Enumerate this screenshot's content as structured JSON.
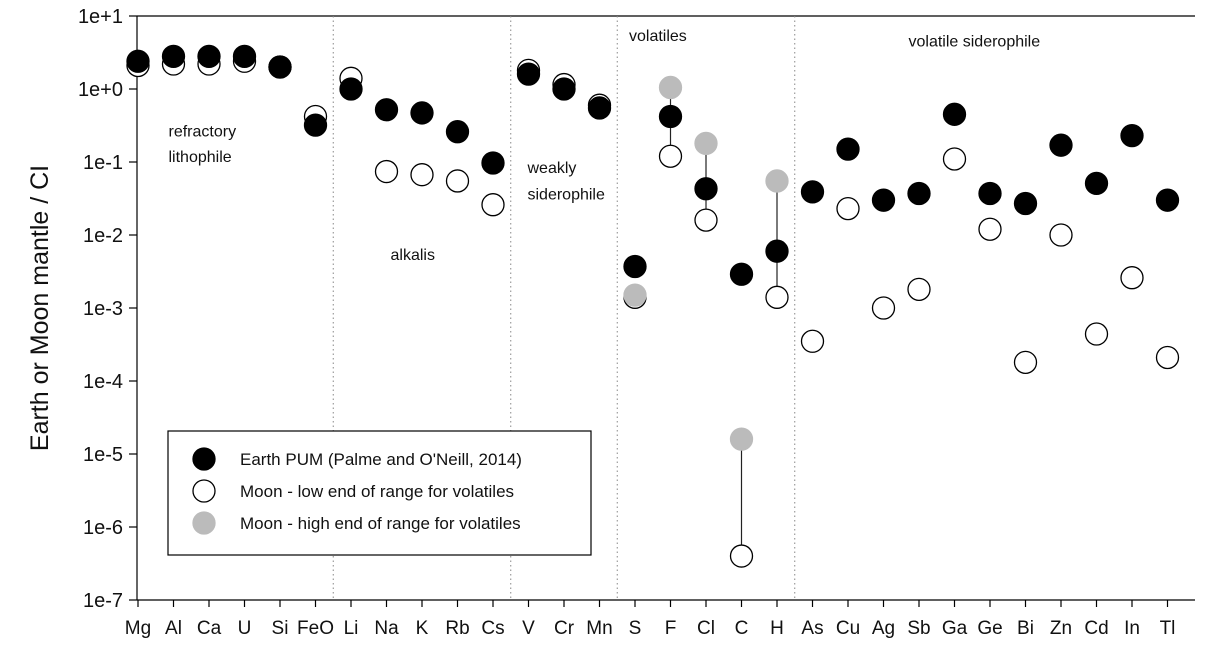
{
  "chart_data": {
    "type": "scatter",
    "title": "",
    "xlabel": "",
    "ylabel": "Earth or Moon mantle / CI",
    "yscale": "log",
    "ylim": [
      1e-07,
      10
    ],
    "y_tick_labels": [
      "1e+1",
      "1e+0",
      "1e-1",
      "1e-2",
      "1e-3",
      "1e-4",
      "1e-5",
      "1e-6",
      "1e-7"
    ],
    "y_tick_values": [
      10,
      1,
      0.1,
      0.01,
      0.001,
      0.0001,
      1e-05,
      1e-06,
      1e-07
    ],
    "categories": [
      "Mg",
      "Al",
      "Ca",
      "U",
      "Si",
      "FeO",
      "Li",
      "Na",
      "K",
      "Rb",
      "Cs",
      "V",
      "Cr",
      "Mn",
      "S",
      "F",
      "Cl",
      "C",
      "H",
      "As",
      "Cu",
      "Ag",
      "Sb",
      "Ga",
      "Ge",
      "Bi",
      "Zn",
      "Cd",
      "In",
      "Tl"
    ],
    "series": [
      {
        "name": "Earth PUM (Palme and O'Neill, 2014)",
        "marker": "filled-black",
        "color": "#000000",
        "values": [
          2.4,
          2.8,
          2.8,
          2.8,
          2.0,
          0.32,
          1.0,
          0.52,
          0.47,
          0.26,
          0.097,
          1.6,
          1.0,
          0.55,
          0.0037,
          0.42,
          0.043,
          0.0029,
          0.006,
          0.039,
          0.15,
          0.03,
          0.037,
          0.45,
          0.037,
          0.027,
          0.17,
          0.051,
          0.23,
          0.03
        ]
      },
      {
        "name": "Moon - low end of range for volatiles",
        "marker": "open-circle",
        "color": "#ffffff",
        "values": [
          2.1,
          2.2,
          2.2,
          2.4,
          2.0,
          0.42,
          1.4,
          0.074,
          0.067,
          0.055,
          0.026,
          1.8,
          1.15,
          0.6,
          0.0014,
          0.12,
          0.016,
          4e-07,
          0.0014,
          0.00035,
          0.023,
          0.001,
          0.0018,
          0.11,
          0.012,
          0.00018,
          0.01,
          0.00044,
          0.0026,
          0.00021
        ]
      },
      {
        "name": "Moon - high end of range for volatiles",
        "marker": "filled-gray",
        "color": "#bbbbbb",
        "values": [
          null,
          null,
          null,
          null,
          null,
          null,
          null,
          null,
          null,
          null,
          null,
          null,
          null,
          null,
          0.0015,
          1.05,
          0.18,
          1.6e-05,
          0.055,
          null,
          null,
          null,
          null,
          null,
          null,
          null,
          null,
          null,
          null,
          null
        ]
      }
    ],
    "range_connectors": [
      "F",
      "Cl",
      "C",
      "H"
    ],
    "group_separators_after": [
      "FeO",
      "Cs",
      "Mn",
      "H"
    ],
    "annotations": [
      {
        "text": "refractory",
        "near": "Mg-Al",
        "y": 0.27
      },
      {
        "text": "lithophile",
        "near": "Mg-Al",
        "y": 0.12
      },
      {
        "text": "alkalis",
        "near": "Na-K",
        "y": 0.0055
      },
      {
        "text": "weakly",
        "near": "V-Cr",
        "y": 0.085
      },
      {
        "text": "siderophile",
        "near": "V-Cr",
        "y": 0.037
      },
      {
        "text": "volatiles",
        "near": "S-F",
        "y": 5.5
      },
      {
        "text": "volatile siderophile",
        "near": "Ga",
        "y": 4.6
      }
    ],
    "legend": {
      "placement": "lower-left",
      "entries": [
        {
          "label": "Earth PUM (Palme and O'Neill, 2014)",
          "marker": "filled-black"
        },
        {
          "label": "Moon - low end of range for volatiles",
          "marker": "open-circle"
        },
        {
          "label": "Moon - high end of range for volatiles",
          "marker": "filled-gray"
        }
      ]
    },
    "grid": false
  }
}
